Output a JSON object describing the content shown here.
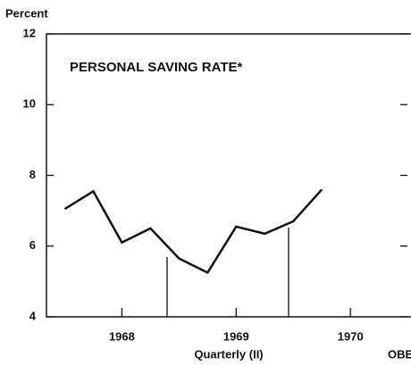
{
  "chart_data": {
    "type": "line",
    "title": "PERSONAL SAVING RATE*",
    "y_label": "Percent",
    "x_label": "Quarterly (II)",
    "source": "OBE",
    "x": [
      1967.5,
      1967.75,
      1968.0,
      1968.25,
      1968.5,
      1968.75,
      1969.0,
      1969.25,
      1969.5,
      1969.75
    ],
    "series": [
      {
        "name": "PERSONAL SAVING RATE*",
        "color": "#111111",
        "values": [
          7.05,
          7.55,
          6.1,
          6.5,
          5.65,
          5.25,
          6.55,
          6.35,
          6.7,
          7.6
        ]
      }
    ],
    "xlim": [
      1967.34,
      1970.53
    ],
    "xticks": [
      1968,
      1969,
      1970
    ],
    "ylim": [
      4,
      12
    ],
    "yticks": [
      4,
      6,
      8,
      10,
      12
    ]
  }
}
